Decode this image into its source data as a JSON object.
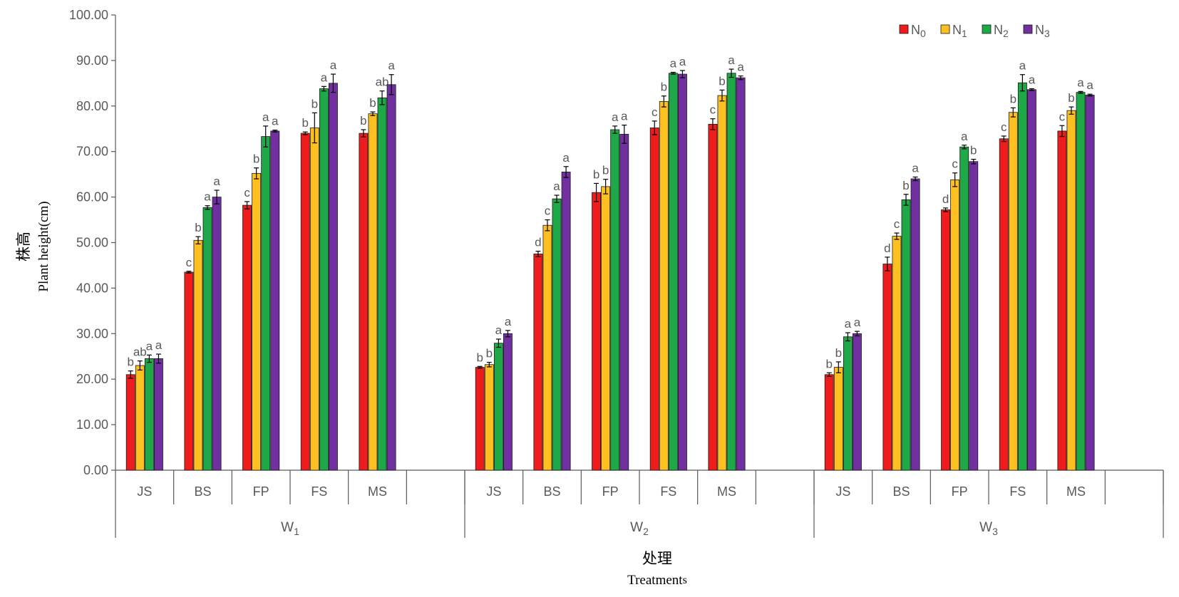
{
  "chart_data": {
    "type": "bar",
    "ylabel_cn": "株高",
    "ylabel_en": "Plant height(cm)",
    "xlabel_cn": "处理",
    "xlabel_en_main": "Treatment",
    "xlabel_en_suffix": "s",
    "ylim": [
      0,
      100
    ],
    "yticks": [
      "0.00",
      "10.00",
      "20.00",
      "30.00",
      "40.00",
      "50.00",
      "60.00",
      "70.00",
      "80.00",
      "90.00",
      "100.00"
    ],
    "legend_position": "top-right",
    "grid": false,
    "groups": [
      {
        "label": "W",
        "sub": "1"
      },
      {
        "label": "W",
        "sub": "2"
      },
      {
        "label": "W",
        "sub": "3"
      }
    ],
    "categories": [
      "JS",
      "BS",
      "FP",
      "FS",
      "MS"
    ],
    "series": [
      {
        "name": "N",
        "sub": "0",
        "color": "#ee1c1c",
        "values": [
          [
            21.0,
            43.5,
            58.2,
            74.0,
            74.0
          ],
          [
            22.6,
            47.5,
            61.0,
            75.2,
            76.0
          ],
          [
            21.0,
            45.3,
            57.2,
            72.8,
            74.5
          ]
        ],
        "errors": [
          [
            0.8,
            0.2,
            0.8,
            0.3,
            0.8
          ],
          [
            0.2,
            0.6,
            2.0,
            1.5,
            1.2
          ],
          [
            0.4,
            1.5,
            0.4,
            0.6,
            1.2
          ]
        ],
        "sig": [
          [
            "b",
            "c",
            "c",
            "b",
            "b"
          ],
          [
            "b",
            "d",
            "b",
            "c",
            "c"
          ],
          [
            "b",
            "d",
            "d",
            "c",
            "c"
          ]
        ]
      },
      {
        "name": "N",
        "sub": "1",
        "color": "#fdc020",
        "values": [
          [
            23.0,
            50.5,
            65.2,
            75.2,
            78.3
          ],
          [
            23.2,
            53.8,
            62.3,
            81.0,
            82.3
          ],
          [
            22.6,
            51.4,
            63.8,
            78.6,
            79.0
          ]
        ],
        "errors": [
          [
            1.0,
            0.8,
            1.2,
            3.3,
            0.4
          ],
          [
            0.5,
            1.2,
            1.6,
            1.2,
            1.2
          ],
          [
            1.2,
            0.7,
            1.5,
            1.0,
            0.8
          ]
        ],
        "sig": [
          [
            "ab",
            "b",
            "b",
            "b",
            "b"
          ],
          [
            "b",
            "c",
            "b",
            "b",
            "b"
          ],
          [
            "b",
            "c",
            "c",
            "b",
            "b"
          ]
        ]
      },
      {
        "name": "N",
        "sub": "2",
        "color": "#1ea848",
        "values": [
          [
            24.5,
            57.7,
            73.3,
            83.8,
            81.8
          ],
          [
            27.9,
            59.6,
            74.8,
            87.2,
            87.2
          ],
          [
            29.3,
            59.4,
            71.0,
            85.1,
            83.0
          ]
        ],
        "errors": [
          [
            0.8,
            0.4,
            2.3,
            0.5,
            1.5
          ],
          [
            0.9,
            0.8,
            0.8,
            0.2,
            0.9
          ],
          [
            0.9,
            1.2,
            0.4,
            1.8,
            0.2
          ]
        ],
        "sig": [
          [
            "a",
            "a",
            "a",
            "a",
            "ab"
          ],
          [
            "a",
            "a",
            "a",
            "a",
            "a"
          ],
          [
            "a",
            "b",
            "a",
            "a",
            "a"
          ]
        ]
      },
      {
        "name": "N",
        "sub": "3",
        "color": "#7030a0",
        "values": [
          [
            24.5,
            60.0,
            74.5,
            85.0,
            84.7
          ],
          [
            30.0,
            65.5,
            73.8,
            87.0,
            86.2
          ],
          [
            30.0,
            64.0,
            67.8,
            83.6,
            82.4
          ]
        ],
        "errors": [
          [
            1.0,
            1.5,
            0.2,
            2.0,
            2.2
          ],
          [
            0.7,
            1.2,
            2.0,
            0.8,
            0.4
          ],
          [
            0.5,
            0.4,
            0.5,
            0.2,
            0.2
          ]
        ],
        "sig": [
          [
            "a",
            "a",
            "a",
            "a",
            "a"
          ],
          [
            "a",
            "a",
            "a",
            "a",
            "a"
          ],
          [
            "a",
            "a",
            "b",
            "a",
            "a"
          ]
        ]
      }
    ]
  }
}
